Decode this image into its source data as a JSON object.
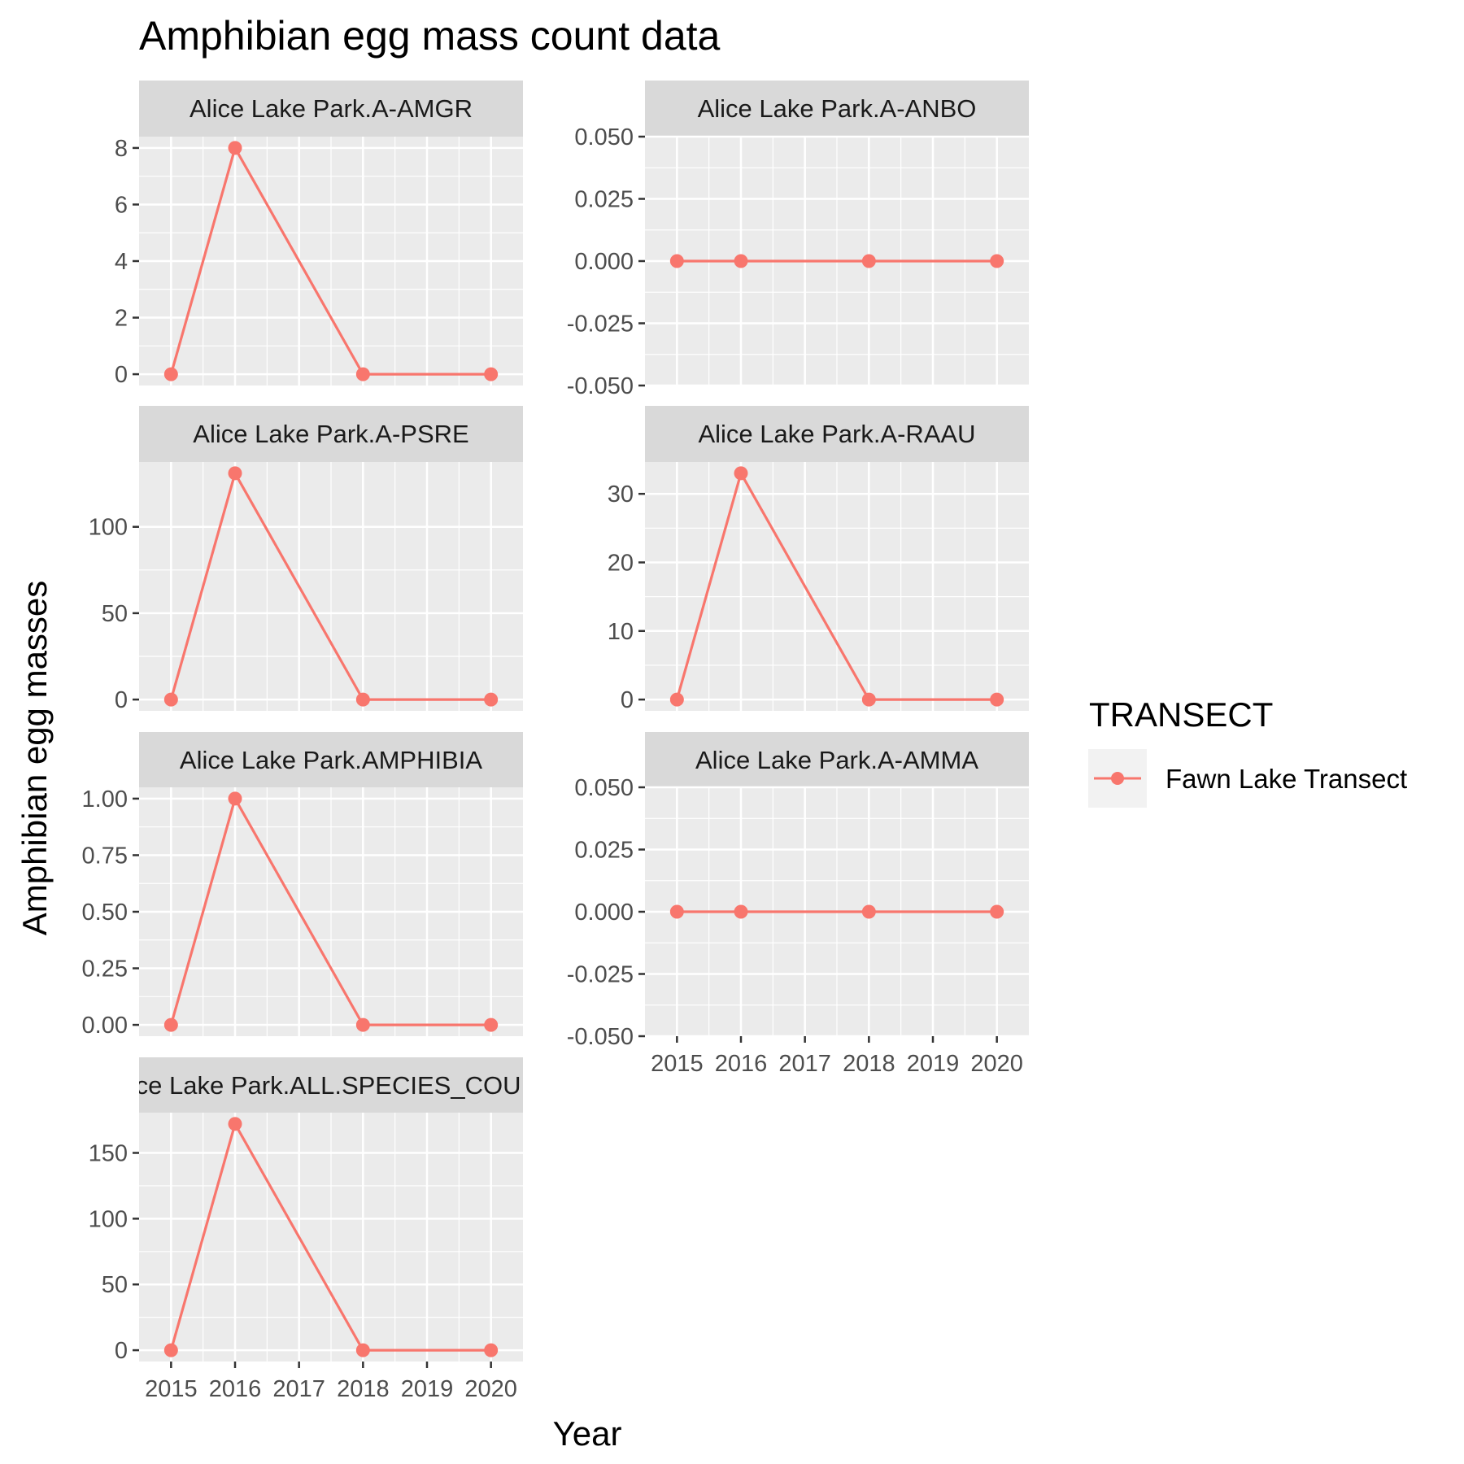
{
  "chart_data": {
    "type": "line",
    "title": "Amphibian egg mass count data",
    "xlabel": "Year",
    "ylabel": "Amphibian egg masses",
    "x_ticks": [
      2015,
      2016,
      2017,
      2018,
      2019,
      2020
    ],
    "xlim": [
      2014.5,
      2020.5
    ],
    "line_color": "#f8766d",
    "panel_background": "#ebebeb",
    "strip_background": "#d9d9d9",
    "grid": true,
    "legend": {
      "title": "TRANSECT",
      "position": "right",
      "entries": [
        {
          "name": "Fawn Lake Transect",
          "color": "#f8766d"
        }
      ]
    },
    "panels": [
      {
        "strip": "Alice Lake Park.A-AMGR",
        "x": [
          2015,
          2016,
          2018,
          2020
        ],
        "y": [
          0,
          8,
          0,
          0
        ],
        "ylim": [
          -0.4,
          8.4
        ],
        "y_ticks": [
          0,
          2,
          4,
          6,
          8
        ],
        "y_tick_labels": [
          "0",
          "2",
          "4",
          "6",
          "8"
        ],
        "show_x_axis": false
      },
      {
        "strip": "Alice Lake Park.A-ANBO",
        "x": [
          2015,
          2016,
          2018,
          2020
        ],
        "y": [
          0,
          0,
          0,
          0
        ],
        "ylim": [
          -0.05,
          0.05
        ],
        "y_ticks": [
          -0.05,
          -0.025,
          0,
          0.025,
          0.05
        ],
        "y_tick_labels": [
          "-0.050",
          "-0.025",
          "0.000",
          "0.025",
          "0.050"
        ],
        "show_x_axis": false
      },
      {
        "strip": "Alice Lake Park.A-PSRE",
        "x": [
          2015,
          2016,
          2018,
          2020
        ],
        "y": [
          0,
          131,
          0,
          0
        ],
        "ylim": [
          -6.55,
          137.55
        ],
        "y_ticks": [
          0,
          50,
          100
        ],
        "y_tick_labels": [
          "0",
          "50",
          "100"
        ],
        "show_x_axis": false
      },
      {
        "strip": "Alice Lake Park.A-RAAU",
        "x": [
          2015,
          2016,
          2018,
          2020
        ],
        "y": [
          0,
          33,
          0,
          0
        ],
        "ylim": [
          -1.65,
          34.65
        ],
        "y_ticks": [
          0,
          10,
          20,
          30
        ],
        "y_tick_labels": [
          "0",
          "10",
          "20",
          "30"
        ],
        "show_x_axis": false
      },
      {
        "strip": "Alice Lake Park.AMPHIBIA",
        "x": [
          2015,
          2016,
          2018,
          2020
        ],
        "y": [
          0,
          1,
          0,
          0
        ],
        "ylim": [
          -0.05,
          1.05
        ],
        "y_ticks": [
          0,
          0.25,
          0.5,
          0.75,
          1
        ],
        "y_tick_labels": [
          "0.00",
          "0.25",
          "0.50",
          "0.75",
          "1.00"
        ],
        "show_x_axis": false
      },
      {
        "strip": "Alice Lake Park.A-AMMA",
        "x": [
          2015,
          2016,
          2018,
          2020
        ],
        "y": [
          0,
          0,
          0,
          0
        ],
        "ylim": [
          -0.05,
          0.05
        ],
        "y_ticks": [
          -0.05,
          -0.025,
          0,
          0.025,
          0.05
        ],
        "y_tick_labels": [
          "-0.050",
          "-0.025",
          "0.000",
          "0.025",
          "0.050"
        ],
        "show_x_axis": true
      },
      {
        "strip": "Alice Lake Park.ALL.SPECIES_COUNT",
        "x": [
          2015,
          2016,
          2018,
          2020
        ],
        "y": [
          0,
          172,
          0,
          0
        ],
        "ylim": [
          -8.6,
          180.6
        ],
        "y_ticks": [
          0,
          50,
          100,
          150
        ],
        "y_tick_labels": [
          "0",
          "50",
          "100",
          "150"
        ],
        "show_x_axis": true
      }
    ]
  }
}
